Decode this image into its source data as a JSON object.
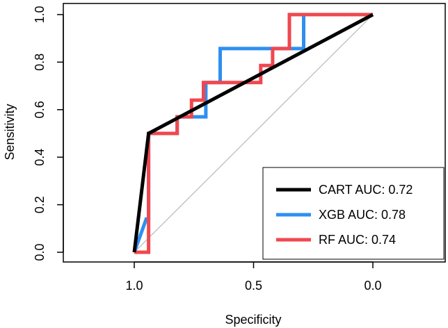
{
  "chart_data": {
    "type": "line",
    "xlabel": "Specificity",
    "ylabel": "Sensitivity",
    "x_reversed": true,
    "xlim": [
      1.3,
      -0.3
    ],
    "ylim": [
      0,
      1
    ],
    "x_ticks": [
      1.0,
      0.5,
      0.0
    ],
    "x_tick_labels": [
      "1.0",
      "0.5",
      "0.0"
    ],
    "y_ticks": [
      0.0,
      0.2,
      0.4,
      0.6,
      0.8,
      1.0
    ],
    "y_tick_labels": [
      "0.0",
      "0.2",
      "0.4",
      "0.6",
      "0.8",
      "1.0"
    ],
    "grid": false,
    "legend_position": "bottom-right",
    "reference_line": {
      "x": [
        1.0,
        0.0
      ],
      "y": [
        0.0,
        1.0
      ],
      "color": "#bebebe"
    },
    "series": [
      {
        "name": "CART AUC: 0.72",
        "color": "#000000",
        "x": [
          1.0,
          0.94,
          0.0
        ],
        "y": [
          0.0,
          0.5,
          1.0
        ]
      },
      {
        "name": "XGB AUC: 0.78",
        "color": "#2e8ff0",
        "x": [
          1.0,
          0.95,
          0.94,
          0.94,
          0.82,
          0.82,
          0.7,
          0.7,
          0.64,
          0.64,
          0.29,
          0.29,
          0.0
        ],
        "y": [
          0.0,
          0.14,
          0.14,
          0.5,
          0.5,
          0.57,
          0.57,
          0.714,
          0.714,
          0.857,
          0.857,
          1.0,
          1.0
        ]
      },
      {
        "name": "RF AUC: 0.74",
        "color": "#f0474f",
        "x": [
          1.0,
          0.94,
          0.94,
          0.82,
          0.82,
          0.76,
          0.76,
          0.71,
          0.71,
          0.47,
          0.47,
          0.42,
          0.42,
          0.35,
          0.35,
          0.0
        ],
        "y": [
          0.0,
          0.0,
          0.5,
          0.5,
          0.57,
          0.57,
          0.64,
          0.64,
          0.714,
          0.714,
          0.786,
          0.786,
          0.857,
          0.857,
          1.0,
          1.0
        ]
      }
    ]
  }
}
